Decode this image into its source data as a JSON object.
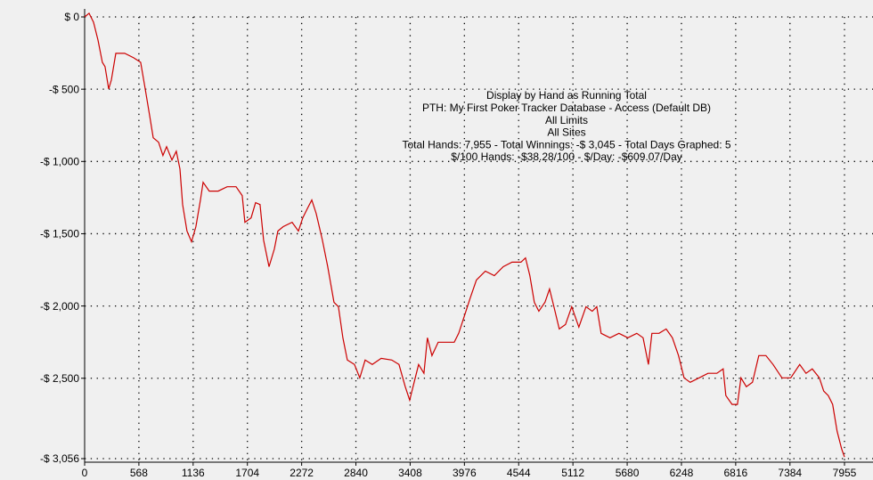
{
  "chart_data": {
    "type": "line",
    "annotations": [
      "Display by Hand as Running Total",
      "PTH: My First Poker Tracker Database - Access (Default DB)",
      "All Limits",
      "All Sites",
      "Total Hands: 7,955 - Total Winnings: -$ 3,045 - Total Days Graphed: 5",
      "$/100 Hands: -$38.28/100 - $/Day: -$609.07/Day"
    ],
    "color": "#cc0000",
    "grid": true,
    "x": [
      0,
      47,
      93,
      140,
      186,
      214,
      252,
      280,
      326,
      420,
      513,
      587,
      634,
      681,
      718,
      774,
      820,
      858,
      914,
      960,
      998,
      1026,
      1072,
      1119,
      1165,
      1212,
      1240,
      1305,
      1398,
      1492,
      1585,
      1650,
      1678,
      1743,
      1790,
      1836,
      1874,
      1930,
      1986,
      2023,
      2079,
      2172,
      2238,
      2284,
      2331,
      2378,
      2424,
      2489,
      2545,
      2610,
      2657,
      2704,
      2750,
      2825,
      2881,
      2937,
      3011,
      3105,
      3216,
      3291,
      3356,
      3403,
      3450,
      3496,
      3552,
      3589,
      3636,
      3701,
      3776,
      3869,
      3916,
      3962,
      4037,
      4102,
      4195,
      4289,
      4382,
      4475,
      4568,
      4615,
      4661,
      4708,
      4755,
      4820,
      4867,
      4913,
      4969,
      5034,
      5099,
      5174,
      5249,
      5314,
      5361,
      5407,
      5500,
      5594,
      5687,
      5780,
      5846,
      5902,
      5939,
      6013,
      6088,
      6153,
      6218,
      6275,
      6340,
      6433,
      6526,
      6619,
      6685,
      6713,
      6778,
      6834,
      6871,
      6927,
      6992,
      7058,
      7132,
      7207,
      7300,
      7393,
      7486,
      7552,
      7617,
      7692,
      7738,
      7785,
      7831,
      7878,
      7925,
      7955
    ],
    "values": [
      0,
      25,
      -37,
      -160,
      -314,
      -344,
      -498,
      -437,
      -252,
      -252,
      -283,
      -314,
      -498,
      -683,
      -836,
      -867,
      -959,
      -898,
      -990,
      -929,
      -1052,
      -1298,
      -1482,
      -1556,
      -1451,
      -1267,
      -1144,
      -1205,
      -1205,
      -1175,
      -1175,
      -1236,
      -1421,
      -1390,
      -1285,
      -1298,
      -1544,
      -1728,
      -1605,
      -1482,
      -1451,
      -1421,
      -1482,
      -1390,
      -1328,
      -1267,
      -1359,
      -1544,
      -1728,
      -1974,
      -2005,
      -2220,
      -2374,
      -2405,
      -2497,
      -2374,
      -2405,
      -2362,
      -2374,
      -2405,
      -2558,
      -2651,
      -2528,
      -2405,
      -2466,
      -2220,
      -2343,
      -2251,
      -2251,
      -2251,
      -2189,
      -2097,
      -1943,
      -1820,
      -1759,
      -1790,
      -1728,
      -1697,
      -1697,
      -1667,
      -1790,
      -1974,
      -2036,
      -1974,
      -1882,
      -2005,
      -2159,
      -2128,
      -2005,
      -2146,
      -2005,
      -2036,
      -2005,
      -2189,
      -2220,
      -2189,
      -2220,
      -2189,
      -2220,
      -2405,
      -2189,
      -2189,
      -2159,
      -2220,
      -2343,
      -2497,
      -2528,
      -2497,
      -2466,
      -2466,
      -2435,
      -2620,
      -2681,
      -2681,
      -2497,
      -2558,
      -2528,
      -2343,
      -2343,
      -2405,
      -2497,
      -2497,
      -2405,
      -2466,
      -2435,
      -2497,
      -2589,
      -2620,
      -2681,
      -2866,
      -2989,
      -3045
    ],
    "xlim": [
      0,
      7955
    ],
    "xticks": [
      0,
      568,
      1136,
      1704,
      2272,
      2840,
      3408,
      3976,
      4544,
      5112,
      5680,
      6248,
      6816,
      7384,
      7955
    ],
    "ylim": [
      -3056,
      0
    ],
    "yticks": [
      {
        "value": 0,
        "label": "$ 0"
      },
      {
        "value": -500,
        "label": "-$ 500"
      },
      {
        "value": -1000,
        "label": "-$ 1,000"
      },
      {
        "value": -1500,
        "label": "-$ 1,500"
      },
      {
        "value": -2000,
        "label": "-$ 2,000"
      },
      {
        "value": -2500,
        "label": "-$ 2,500"
      },
      {
        "value": -3056,
        "label": "-$ 3,056"
      }
    ]
  }
}
